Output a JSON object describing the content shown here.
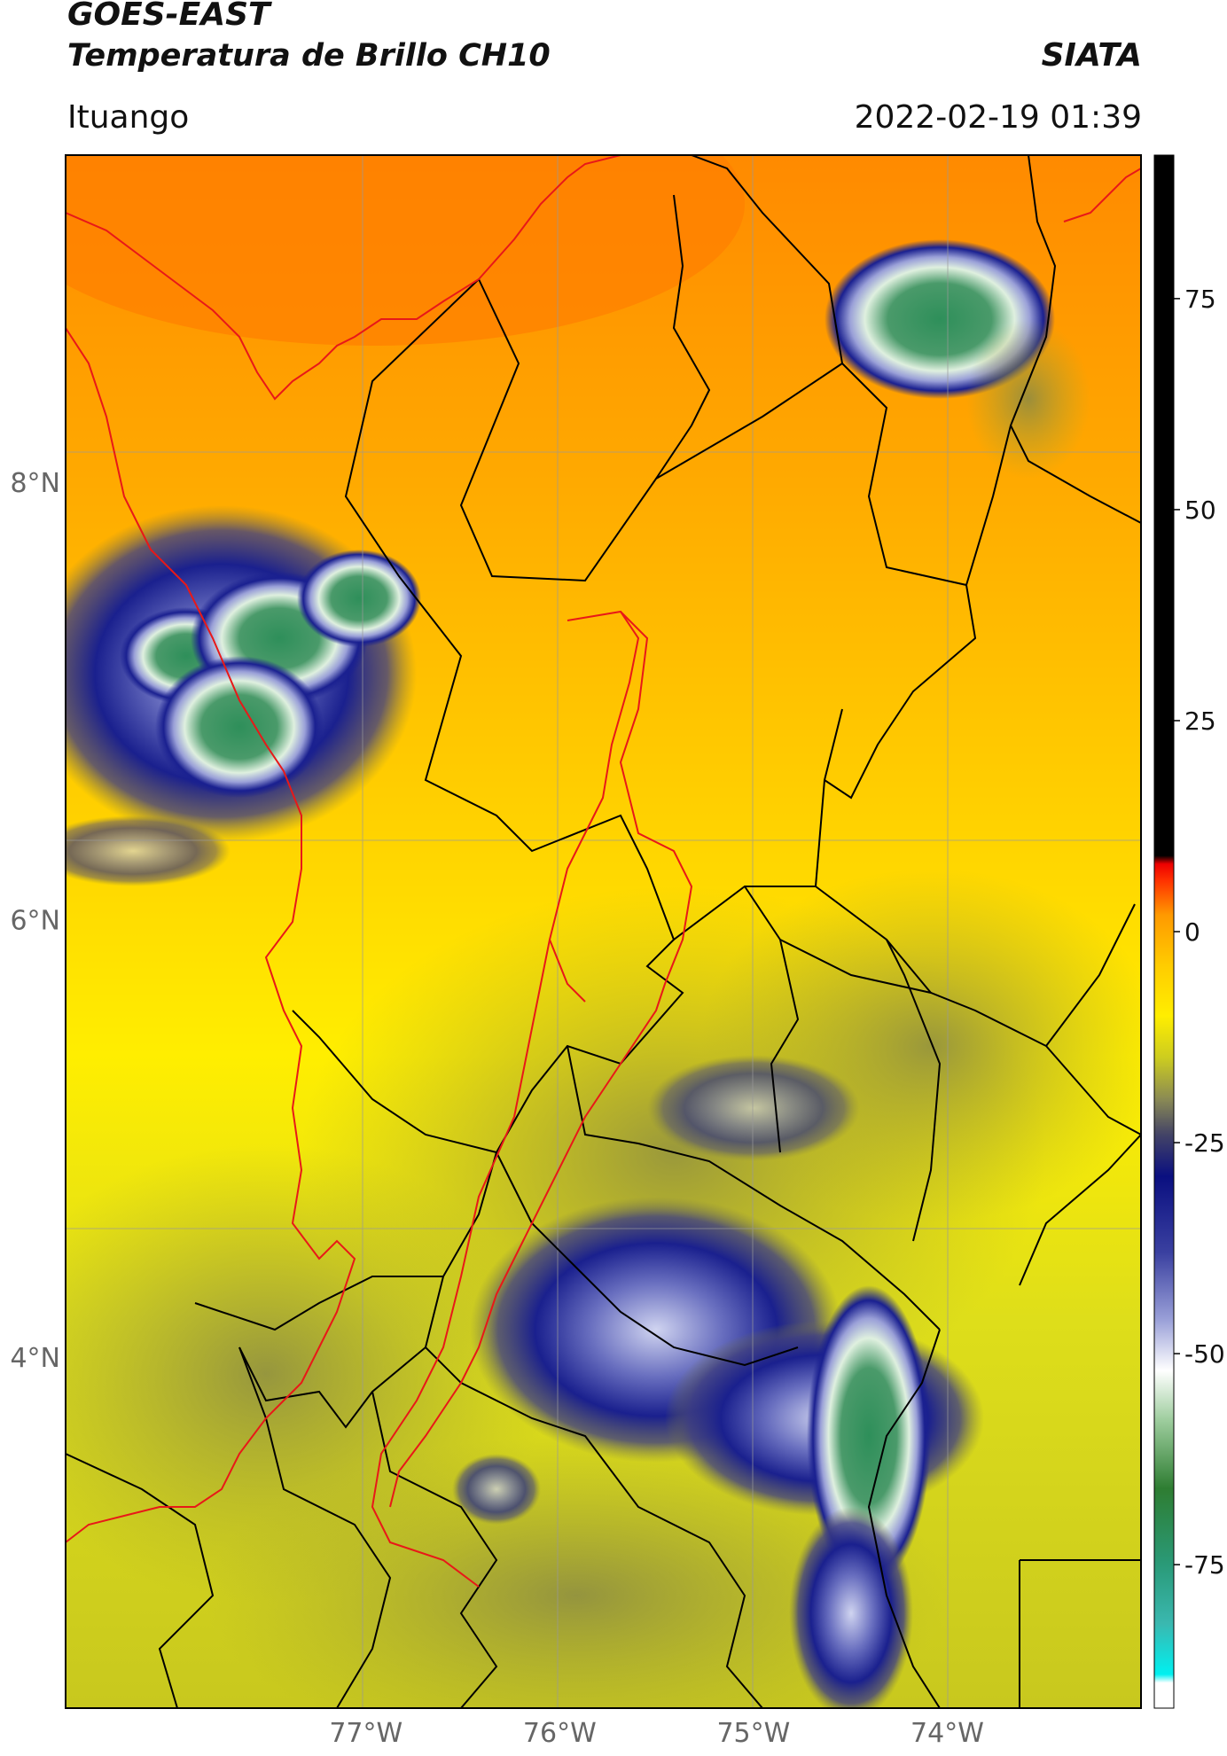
{
  "header": {
    "satellite": "GOES-EAST",
    "product": "Temperatura de Brillo CH10",
    "organization": "SIATA",
    "location": "Ituango",
    "datetime": "2022-02-19 01:39"
  },
  "map": {
    "lat_ticks": [
      {
        "label": "8°N",
        "value": 8
      },
      {
        "label": "6°N",
        "value": 6
      },
      {
        "label": "4°N",
        "value": 4
      }
    ],
    "lon_ticks": [
      {
        "label": "77°W",
        "value": -77
      },
      {
        "label": "76°W",
        "value": -76
      },
      {
        "label": "75°W",
        "value": -75
      },
      {
        "label": "74°W",
        "value": -74
      }
    ],
    "lat_range": [
      2.4,
      9.5
    ],
    "lon_range": [
      -78.55,
      -73.0
    ]
  },
  "colorbar": {
    "unit_hidden": true,
    "ticks": [
      {
        "label": "75",
        "value": 75
      },
      {
        "label": "50",
        "value": 50
      },
      {
        "label": "25",
        "value": 25
      },
      {
        "label": "0",
        "value": 0
      },
      {
        "label": "-25",
        "value": -25
      },
      {
        "label": "-50",
        "value": -50
      },
      {
        "label": "-75",
        "value": -75
      }
    ],
    "range": [
      -92,
      92
    ],
    "stops": [
      {
        "value": -92,
        "color": "#ffffff"
      },
      {
        "value": -89,
        "color": "#ffffff"
      },
      {
        "value": -88,
        "color": "#00f0f0"
      },
      {
        "value": -82,
        "color": "#3ab8b0"
      },
      {
        "value": -75,
        "color": "#2a9a78"
      },
      {
        "value": -66,
        "color": "#2e7d32"
      },
      {
        "value": -58,
        "color": "#9ccc9c"
      },
      {
        "value": -52,
        "color": "#ffffff"
      },
      {
        "value": -46,
        "color": "#9aa0d8"
      },
      {
        "value": -38,
        "color": "#3a40a0"
      },
      {
        "value": -29,
        "color": "#0a0f80"
      },
      {
        "value": -24,
        "color": "#444466"
      },
      {
        "value": -20,
        "color": "#888855"
      },
      {
        "value": -15,
        "color": "#cccc20"
      },
      {
        "value": -10,
        "color": "#ffee00"
      },
      {
        "value": -4,
        "color": "#ffcc00"
      },
      {
        "value": 2,
        "color": "#ff9900"
      },
      {
        "value": 6,
        "color": "#ff3300"
      },
      {
        "value": 8,
        "color": "#ee0000"
      },
      {
        "value": 9,
        "color": "#000000"
      },
      {
        "value": 92,
        "color": "#000000"
      }
    ]
  },
  "colors": {
    "border_country": "#e81818",
    "border_admin": "#000000",
    "gridline": "#999999"
  }
}
